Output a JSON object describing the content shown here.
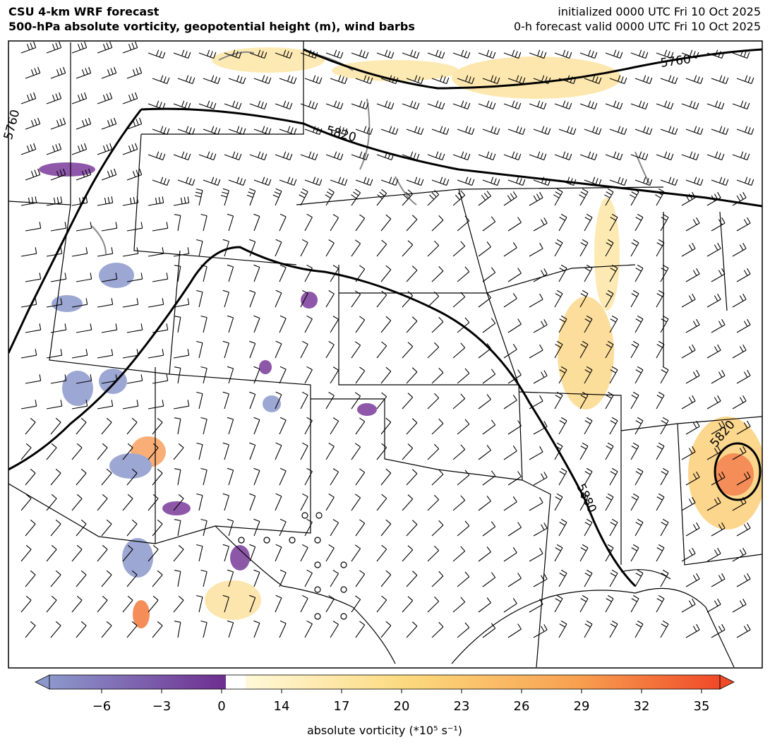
{
  "header": {
    "title": [
      "CSU 4-km WRF forecast",
      "500-hPa absolute vorticity, geopotential height (m), wind barbs"
    ],
    "info": [
      "initialized 0000 UTC Fri 10 Oct 2025",
      "0-h forecast valid 0000 UTC Fri 10 Oct 2025"
    ]
  },
  "map": {
    "contour_labels": [
      "5760",
      "5760",
      "5820",
      "5880",
      "5820"
    ]
  },
  "colorbar": {
    "ticks": [
      {
        "value": -6,
        "label": "−6"
      },
      {
        "value": -3,
        "label": "−3"
      },
      0,
      14,
      17,
      20,
      23,
      26,
      29,
      32,
      35
    ],
    "label": "absolute vorticity (*10⁵ s⁻¹)"
  }
}
